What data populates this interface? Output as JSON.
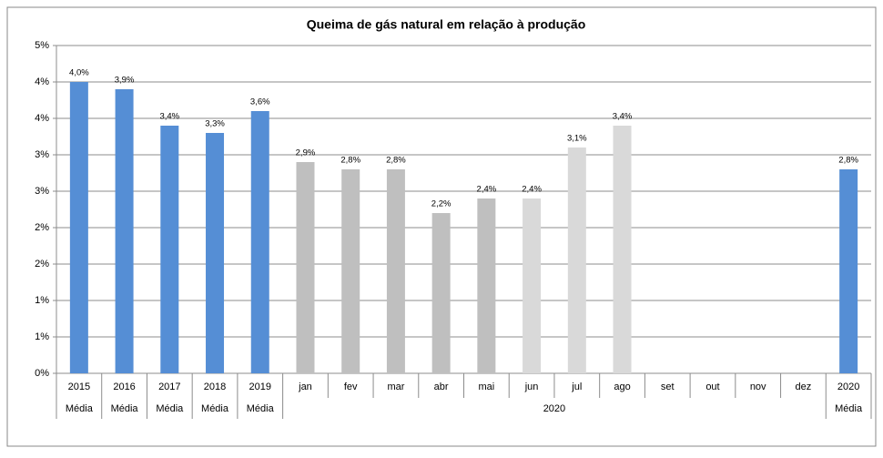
{
  "chart_data": {
    "type": "bar",
    "title": "Queima de gás natural  em relação à produção",
    "category_groups": [
      {
        "label": "Média",
        "categories": [
          "2015"
        ]
      },
      {
        "label": "Média",
        "categories": [
          "2016"
        ]
      },
      {
        "label": "Média",
        "categories": [
          "2017"
        ]
      },
      {
        "label": "Média",
        "categories": [
          "2018"
        ]
      },
      {
        "label": "Média",
        "categories": [
          "2019"
        ]
      },
      {
        "label": "2020",
        "categories": [
          "jan",
          "fev",
          "mar",
          "abr",
          "mai",
          "jun",
          "jul",
          "ago",
          "set",
          "out",
          "nov",
          "dez"
        ]
      },
      {
        "label": "Média",
        "categories": [
          "2020"
        ]
      }
    ],
    "values": [
      4.0,
      3.9,
      3.4,
      3.3,
      3.6,
      2.9,
      2.8,
      2.8,
      2.2,
      2.4,
      2.4,
      3.1,
      3.4,
      null,
      null,
      null,
      null,
      2.8
    ],
    "value_labels": [
      "4,0%",
      "3,9%",
      "3,4%",
      "3,3%",
      "3,6%",
      "2,9%",
      "2,8%",
      "2,8%",
      "2,2%",
      "2,4%",
      "2,4%",
      "3,1%",
      "3,4%",
      null,
      null,
      null,
      null,
      "2,8%"
    ],
    "colors": [
      "#558ed5",
      "#558ed5",
      "#558ed5",
      "#558ed5",
      "#558ed5",
      "#bfbfbf",
      "#bfbfbf",
      "#bfbfbf",
      "#bfbfbf",
      "#bfbfbf",
      "#d9d9d9",
      "#d9d9d9",
      "#d9d9d9",
      null,
      null,
      null,
      null,
      "#558ed5"
    ],
    "ylim": [
      0,
      4.5
    ],
    "yticks": [
      {
        "value": 0,
        "label": "0%"
      },
      {
        "value": 0.5,
        "label": "1%"
      },
      {
        "value": 1,
        "label": "1%"
      },
      {
        "value": 1.5,
        "label": "2%"
      },
      {
        "value": 2,
        "label": "2%"
      },
      {
        "value": 2.5,
        "label": "3%"
      },
      {
        "value": 3,
        "label": "3%"
      },
      {
        "value": 3.5,
        "label": "4%"
      },
      {
        "value": 4,
        "label": "4%"
      },
      {
        "value": 4.5,
        "label": "5%"
      }
    ],
    "grid": true
  }
}
